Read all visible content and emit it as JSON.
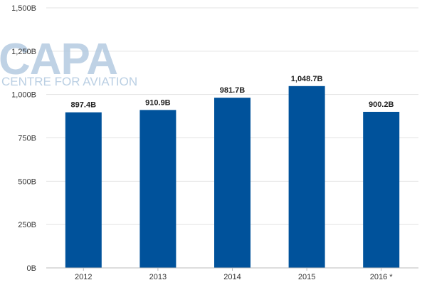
{
  "watermark": {
    "brand": "CAPA",
    "tagline": "CENTRE FOR AVIATION"
  },
  "chart_data": {
    "type": "bar",
    "title": "",
    "xlabel": "",
    "ylabel": "",
    "categories": [
      "2012",
      "2013",
      "2014",
      "2015",
      "2016 *"
    ],
    "values": [
      897.4,
      910.9,
      981.7,
      1048.7,
      900.2
    ],
    "data_labels": [
      "897.4B",
      "910.9B",
      "981.7B",
      "1,048.7B",
      "900.2B"
    ],
    "ylim": [
      0,
      1500
    ],
    "yticks": [
      0,
      250,
      500,
      750,
      1000,
      1250,
      1500
    ],
    "ytick_labels": [
      "0B",
      "250B",
      "500B",
      "750B",
      "1,000B",
      "1,250B",
      "1,500B"
    ],
    "grid": true,
    "legend": "none",
    "bar_color": "#00529b"
  }
}
